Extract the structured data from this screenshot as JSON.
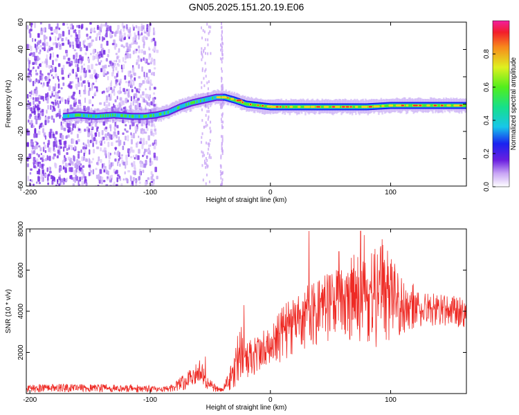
{
  "title": "GN05.2025.151.20.19.E06",
  "chart_data": [
    {
      "type": "heatmap",
      "panel": "spectrogram",
      "xlabel": "Height of straight line (km)",
      "ylabel": "Frequency (Hz)",
      "xlim": [
        -203,
        163
      ],
      "ylim": [
        -60,
        60
      ],
      "x_ticks": [
        -200,
        -100,
        0,
        100
      ],
      "y_ticks": [
        -60,
        -40,
        -20,
        0,
        20,
        40,
        60
      ],
      "colorbar": {
        "label": "Normalized spectral amplitude",
        "range": [
          0,
          1
        ],
        "ticks": [
          0.0,
          0.2,
          0.4,
          0.6,
          0.8
        ],
        "tick_labels": [
          "0.0",
          "0.2",
          "0.4",
          "0.6",
          "0.8"
        ],
        "colormap": "white-purple-blue-cyan-green-yellow-red-magenta"
      },
      "noise_region_x": [
        -203,
        -95
      ],
      "signal_track": {
        "x": [
          -172,
          -160,
          -145,
          -130,
          -115,
          -105,
          -95,
          -85,
          -75,
          -65,
          -55,
          -45,
          -38,
          -30,
          -20,
          -10,
          0,
          20,
          40,
          60,
          80,
          100,
          120,
          140,
          163
        ],
        "frequency": [
          -9,
          -8,
          -9,
          -8,
          -9,
          -9,
          -8,
          -6,
          -2,
          1,
          3,
          5,
          5,
          3,
          0,
          -1,
          -2,
          -2,
          -2,
          -2,
          -2,
          -1,
          -1,
          -1,
          -1
        ]
      }
    },
    {
      "type": "line",
      "panel": "snr",
      "xlabel": "Height of straight line (km)",
      "ylabel": "SNR (10 * v/v)",
      "xlim": [
        -203,
        163
      ],
      "ylim": [
        0,
        8000
      ],
      "x_ticks": [
        -200,
        -100,
        0,
        100
      ],
      "y_ticks": [
        2000,
        4000,
        6000,
        8000
      ],
      "color": "#ee2a24",
      "series_envelope": {
        "x": [
          -203,
          -180,
          -160,
          -140,
          -120,
          -100,
          -90,
          -80,
          -75,
          -70,
          -65,
          -60,
          -55,
          -50,
          -45,
          -40,
          -35,
          -30,
          -25,
          -20,
          -10,
          0,
          10,
          20,
          30,
          40,
          50,
          60,
          70,
          80,
          90,
          100,
          110,
          120,
          130,
          140,
          150,
          163
        ],
        "upper": [
          400,
          500,
          450,
          450,
          450,
          400,
          300,
          500,
          800,
          1000,
          1400,
          1800,
          1300,
          700,
          400,
          300,
          1000,
          1900,
          3600,
          2400,
          3000,
          3300,
          4400,
          4600,
          5300,
          5600,
          5900,
          6200,
          6800,
          6400,
          7500,
          6800,
          5800,
          5300,
          5000,
          4800,
          4800,
          4600
        ],
        "lower": [
          50,
          60,
          60,
          60,
          60,
          60,
          50,
          80,
          120,
          200,
          300,
          400,
          300,
          150,
          50,
          50,
          100,
          300,
          800,
          700,
          1000,
          1500,
          1500,
          2000,
          2200,
          2400,
          2600,
          2800,
          2400,
          2400,
          2000,
          2400,
          2800,
          3200,
          3300,
          3300,
          3300,
          3200
        ]
      },
      "peaks": [
        {
          "x": -54,
          "y": 1800
        },
        {
          "x": -22,
          "y": 4300
        },
        {
          "x": 32,
          "y": 7900
        },
        {
          "x": 57,
          "y": 6900
        },
        {
          "x": 75,
          "y": 7900
        },
        {
          "x": 78,
          "y": 7700
        },
        {
          "x": 93,
          "y": 7500
        }
      ]
    }
  ]
}
